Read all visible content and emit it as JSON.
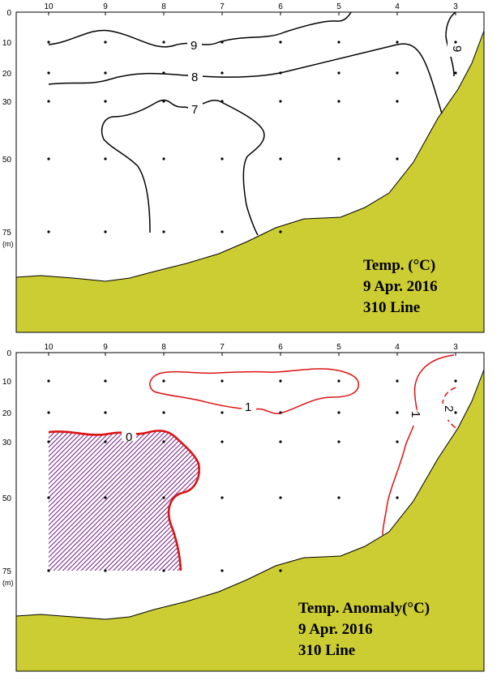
{
  "colors": {
    "land": "#cccc33",
    "contour_temp": "#000000",
    "contour_anomaly": "#dd1111",
    "hatch": "#7a2a8a",
    "frame": "#000000"
  },
  "chart_data": [
    {
      "type": "contour",
      "title_lines": [
        "Temp. (°C)",
        "9 Apr. 2016",
        "310 Line"
      ],
      "stations": [
        "10",
        "9",
        "8",
        "7",
        "6",
        "5",
        "4",
        "3"
      ],
      "depths": [
        "0",
        "10",
        "20",
        "30",
        "50",
        "75"
      ],
      "depth_unit": "(m)",
      "contour_labels": [
        "9",
        "8",
        "7",
        "9"
      ]
    },
    {
      "type": "contour",
      "title_lines": [
        "Temp. Anomaly(°C)",
        "9 Apr. 2016",
        "310 Line"
      ],
      "stations": [
        "10",
        "9",
        "8",
        "7",
        "6",
        "5",
        "4",
        "3"
      ],
      "depths": [
        "0",
        "10",
        "20",
        "30",
        "50",
        "75"
      ],
      "depth_unit": "(m)",
      "contour_labels": [
        "1",
        "0",
        "1",
        "2"
      ]
    }
  ]
}
